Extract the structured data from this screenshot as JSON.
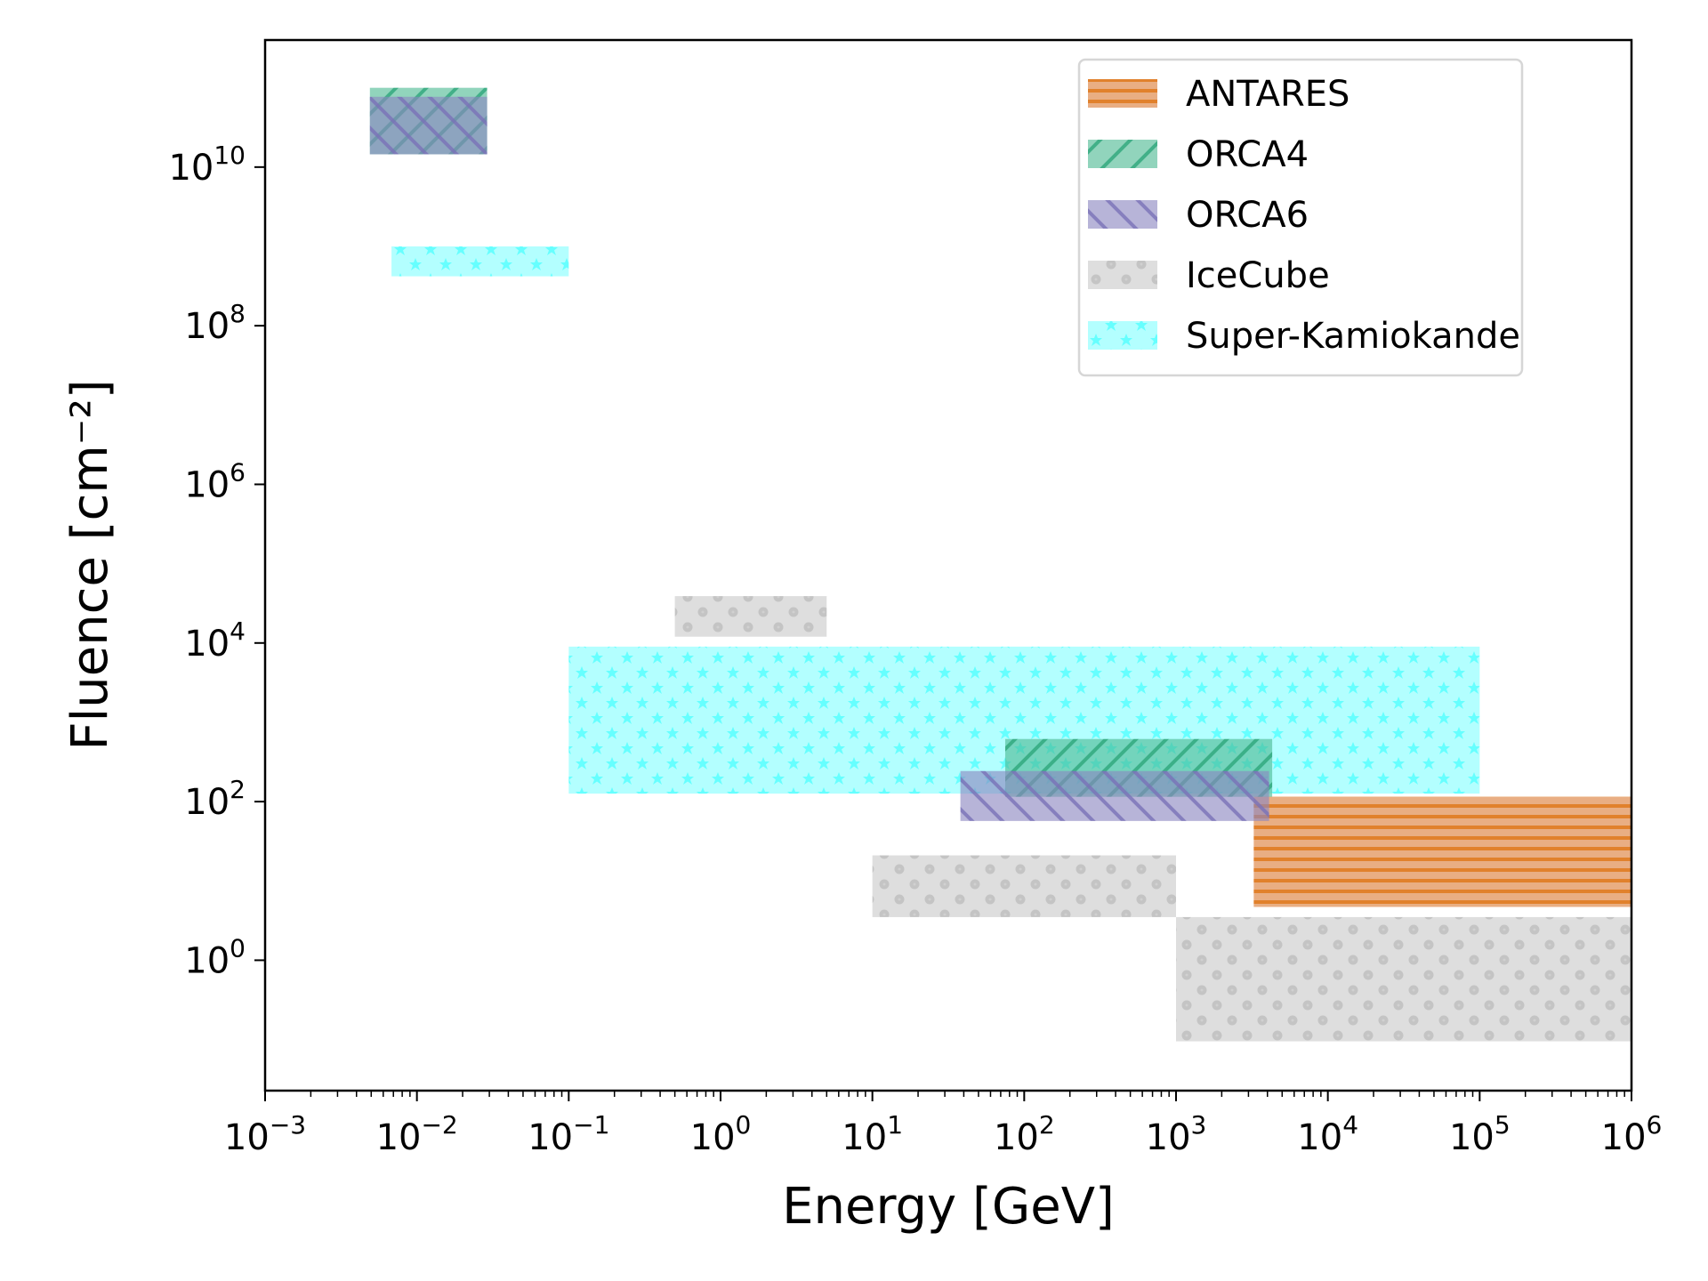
{
  "chart_data": {
    "type": "box-regions",
    "title": "",
    "xlabel": "Energy [GeV]",
    "ylabel": "Fluence [cm⁻²]",
    "xscale": "log",
    "yscale": "log",
    "xlim": [
      0.001,
      1000000
    ],
    "ylim": [
      0.0227,
      400000000000.0
    ],
    "x_ticks": [
      {
        "base": "10",
        "exp": "−3",
        "v": 0.001
      },
      {
        "base": "10",
        "exp": "−2",
        "v": 0.01
      },
      {
        "base": "10",
        "exp": "−1",
        "v": 0.1
      },
      {
        "base": "10",
        "exp": "0",
        "v": 1
      },
      {
        "base": "10",
        "exp": "1",
        "v": 10
      },
      {
        "base": "10",
        "exp": "2",
        "v": 100
      },
      {
        "base": "10",
        "exp": "3",
        "v": 1000
      },
      {
        "base": "10",
        "exp": "4",
        "v": 10000
      },
      {
        "base": "10",
        "exp": "5",
        "v": 100000
      },
      {
        "base": "10",
        "exp": "6",
        "v": 1000000
      }
    ],
    "y_ticks": [
      {
        "base": "10",
        "exp": "0",
        "v": 1
      },
      {
        "base": "10",
        "exp": "2",
        "v": 100
      },
      {
        "base": "10",
        "exp": "4",
        "v": 10000
      },
      {
        "base": "10",
        "exp": "6",
        "v": 1000000
      },
      {
        "base": "10",
        "exp": "8",
        "v": 100000000
      },
      {
        "base": "10",
        "exp": "10",
        "v": 10000000000
      }
    ],
    "grid": false,
    "legend_position": "top-right",
    "series": [
      {
        "name": "ANTARES",
        "color": "#e1812c",
        "fill": "#e9ae83",
        "hatch": "horizontal",
        "boxes": [
          {
            "x": [
              3250,
              1000000
            ],
            "y": [
              4.7,
              115
            ]
          }
        ]
      },
      {
        "name": "ORCA4",
        "color": "#3bb58a",
        "fill": "#8ecdb5",
        "hatch": "forward-diagonal",
        "boxes": [
          {
            "x": [
              0.0049,
              0.029
            ],
            "y": [
              14500000000.0,
              100000000000.0
            ]
          },
          {
            "x": [
              75,
              4300
            ],
            "y": [
              115,
              616
            ]
          }
        ]
      },
      {
        "name": "ORCA6",
        "color": "#8c86c4",
        "fill": "#b6b4d6",
        "hatch": "back-diagonal",
        "boxes": [
          {
            "x": [
              0.0049,
              0.029
            ],
            "y": [
              14500000000.0,
              77000000000.0
            ]
          },
          {
            "x": [
              38,
              4100
            ],
            "y": [
              57,
              243
            ]
          }
        ]
      },
      {
        "name": "IceCube",
        "color": "#c4c4c4",
        "fill": "#dedede",
        "hatch": "dots",
        "boxes": [
          {
            "x": [
              0.5,
              5
            ],
            "y": [
              12000,
              39000
            ]
          },
          {
            "x": [
              10,
              1000
            ],
            "y": [
              3.5,
              21
            ]
          },
          {
            "x": [
              1000,
              1000000
            ],
            "y": [
              0.095,
              3.5
            ]
          }
        ]
      },
      {
        "name": "Super-Kamiokande",
        "color": "#66ffff",
        "fill": "#b3ffff",
        "hatch": "stars",
        "boxes": [
          {
            "x": [
              0.0068,
              0.1
            ],
            "y": [
              420000000.0,
              1000000000.0
            ]
          },
          {
            "x": [
              0.1,
              100000
            ],
            "y": [
              126,
              9000
            ]
          }
        ]
      }
    ],
    "draw_order": [
      "Super-Kamiokande",
      "IceCube",
      "ANTARES",
      "ORCA4",
      "ORCA6"
    ]
  }
}
